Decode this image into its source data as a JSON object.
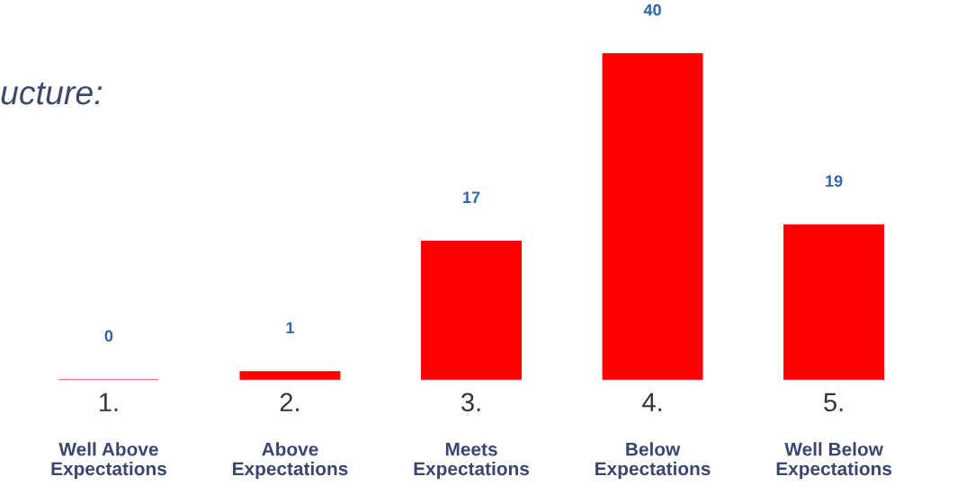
{
  "chart_data": {
    "type": "bar",
    "title": "ucture:",
    "categories": [
      "1.\nWell Above\nExpectations",
      "2.\nAbove\nExpectations",
      "3.\nMeets\nExpectations",
      "4.\nBelow\nExpectations",
      "5.\nWell Below\nExpectations"
    ],
    "values": [
      0,
      1,
      17,
      40,
      19
    ],
    "color": "#ff0000",
    "data_labels": true
  }
}
